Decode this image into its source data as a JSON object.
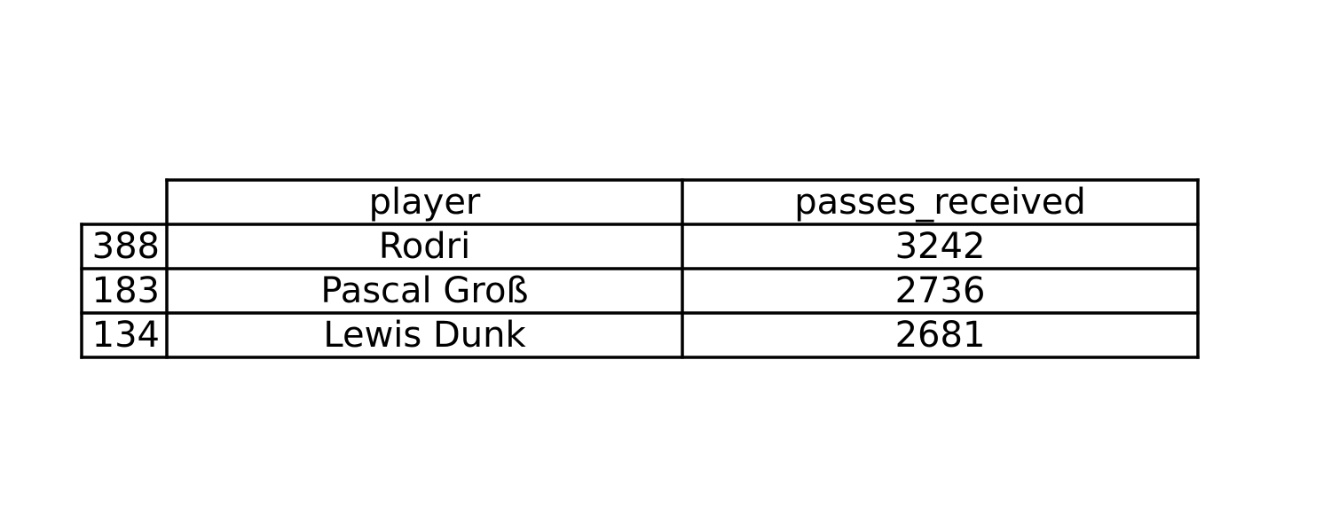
{
  "chart_data": {
    "type": "table",
    "columns": [
      "player",
      "passes_received"
    ],
    "rows": [
      {
        "index": "388",
        "player": "Rodri",
        "passes_received": 3242
      },
      {
        "index": "183",
        "player": "Pascal Groß",
        "passes_received": 2736
      },
      {
        "index": "134",
        "player": "Lewis Dunk",
        "passes_received": 2681
      }
    ]
  }
}
